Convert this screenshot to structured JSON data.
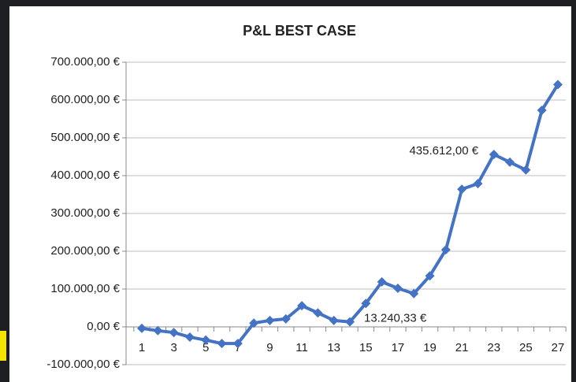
{
  "chart_data": {
    "type": "line",
    "title": "P&L BEST CASE",
    "categories": [
      1,
      null,
      3,
      null,
      5,
      null,
      7,
      null,
      9,
      null,
      11,
      null,
      13,
      null,
      15,
      null,
      17,
      null,
      19,
      null,
      21,
      null,
      23,
      null,
      25,
      null,
      27
    ],
    "series": [
      {
        "name": "P&L",
        "color": "#4472c4",
        "values": [
          -4000,
          -10000,
          -15000,
          -27000,
          -35000,
          -44000,
          -44000,
          10000,
          17000,
          21000,
          56000,
          37000,
          17000,
          13240.33,
          62000,
          119000,
          102000,
          88000,
          135000,
          204000,
          364000,
          379000,
          456000,
          435612,
          415000,
          573000,
          641000
        ],
        "value_labels": [
          null,
          null,
          null,
          null,
          null,
          null,
          null,
          null,
          null,
          null,
          null,
          null,
          null,
          "13.240,33 €",
          null,
          null,
          null,
          null,
          null,
          null,
          null,
          null,
          null,
          "435.612,00 €",
          null,
          null,
          null
        ]
      }
    ],
    "ylim": [
      -100000,
      700000
    ],
    "yticks": [
      {
        "value": -100000,
        "label": "-100.000,00 €"
      },
      {
        "value": 0,
        "label": "0,00 €"
      },
      {
        "value": 100000,
        "label": "100.000,00 €"
      },
      {
        "value": 200000,
        "label": "200.000,00 €"
      },
      {
        "value": 300000,
        "label": "300.000,00 €"
      },
      {
        "value": 400000,
        "label": "400.000,00 €"
      },
      {
        "value": 500000,
        "label": "500.000,00 €"
      },
      {
        "value": 600000,
        "label": "600.000,00 €"
      },
      {
        "value": 700000,
        "label": "700.000,00 €"
      }
    ],
    "grid": true
  }
}
